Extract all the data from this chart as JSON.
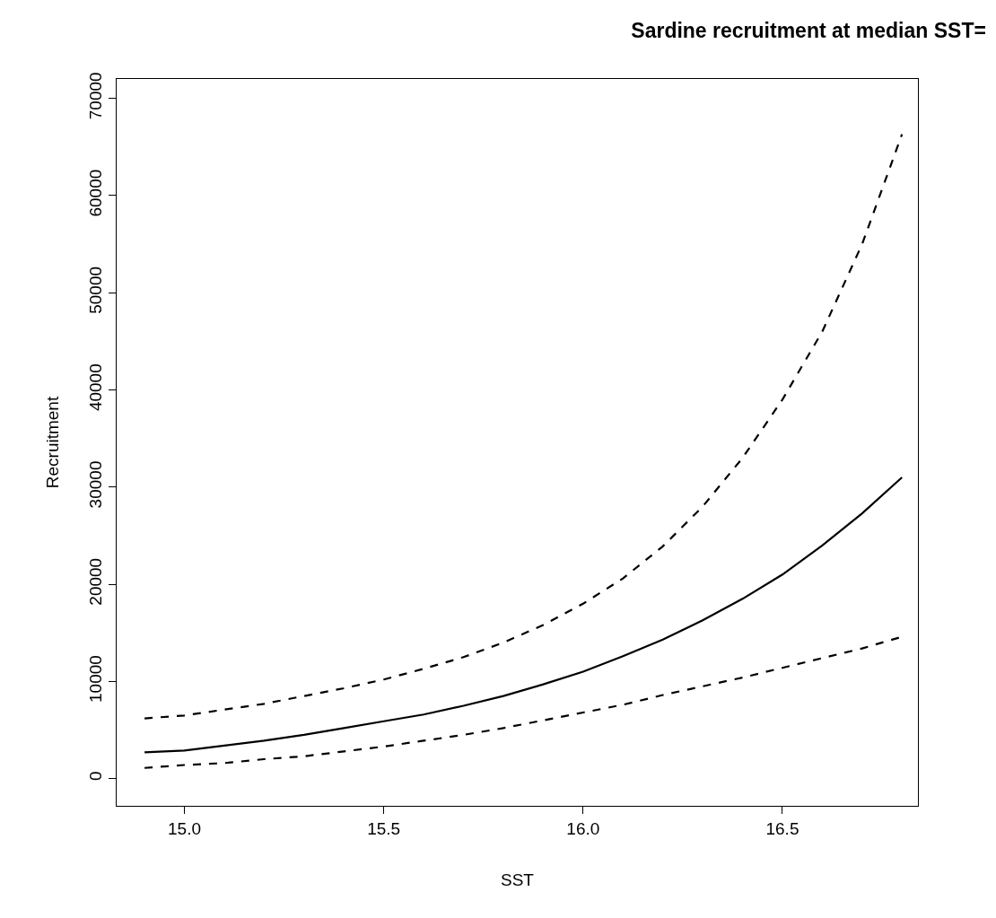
{
  "chart_data": {
    "type": "line",
    "title": "Sardine recruitment at median SST=",
    "xlabel": "SST",
    "ylabel": "Recruitment",
    "x": [
      14.9,
      15.0,
      15.1,
      15.2,
      15.3,
      15.4,
      15.5,
      15.6,
      15.7,
      15.8,
      15.9,
      16.0,
      16.1,
      16.2,
      16.3,
      16.4,
      16.5,
      16.6,
      16.7,
      16.8
    ],
    "series": [
      {
        "color": "#000000",
        "line_style": "solid",
        "values": [
          2700,
          2900,
          3400,
          3900,
          4500,
          5200,
          5900,
          6600,
          7500,
          8500,
          9700,
          11000,
          12600,
          14300,
          16300,
          18500,
          21000,
          24000,
          27300,
          31000
        ]
      },
      {
        "color": "#000000",
        "line_style": "dashed",
        "values": [
          6200,
          6500,
          7100,
          7700,
          8500,
          9300,
          10200,
          11300,
          12500,
          14000,
          15800,
          18000,
          20600,
          23900,
          28000,
          33000,
          39000,
          46000,
          55000,
          66300
        ]
      },
      {
        "color": "#000000",
        "line_style": "dashed",
        "values": [
          1100,
          1400,
          1600,
          2000,
          2300,
          2800,
          3300,
          3900,
          4500,
          5200,
          6000,
          6800,
          7600,
          8600,
          9500,
          10400,
          11400,
          12400,
          13400,
          14600
        ]
      }
    ],
    "xlim": [
      14.83,
      16.84
    ],
    "ylim": [
      -2800,
      72000
    ],
    "xticks": [
      {
        "value": 15.0,
        "label": "15.0"
      },
      {
        "value": 15.5,
        "label": "15.5"
      },
      {
        "value": 16.0,
        "label": "16.0"
      },
      {
        "value": 16.5,
        "label": "16.5"
      }
    ],
    "yticks": [
      0,
      10000,
      20000,
      30000,
      40000,
      50000,
      60000,
      70000
    ]
  }
}
